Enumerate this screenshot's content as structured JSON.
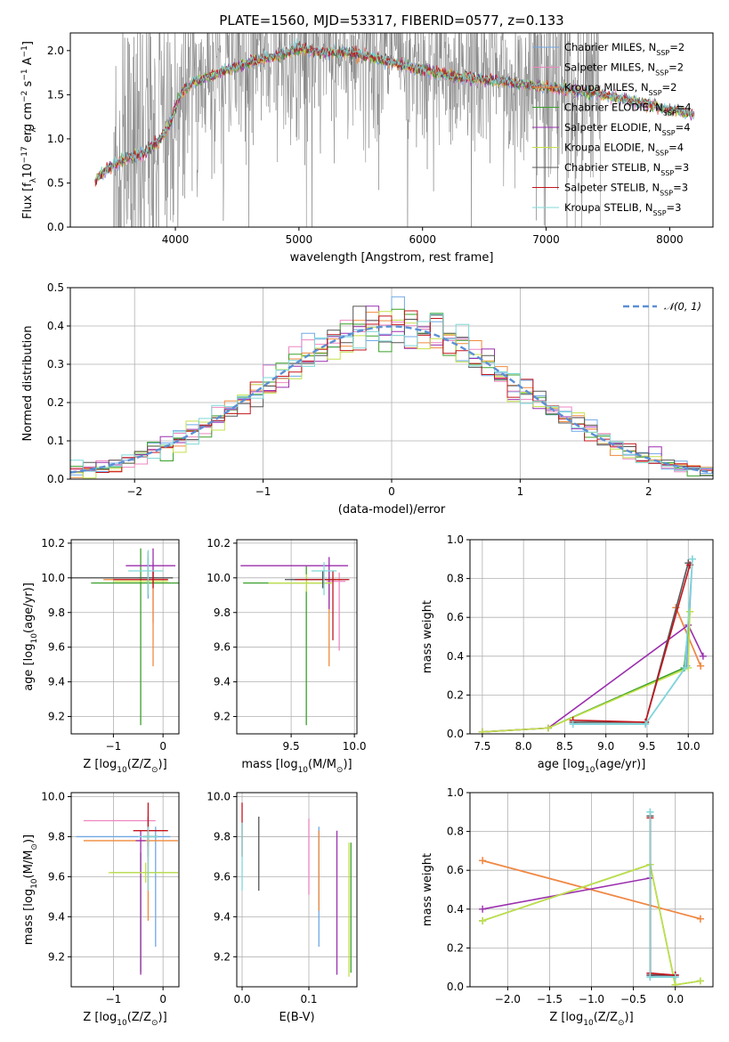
{
  "figure": {
    "title": "PLATE=1560, MJD=53317, FIBERID=0577, z=0.133"
  },
  "colors": {
    "data": "#808080",
    "models": [
      "#6fa8e6",
      "#ee86c0",
      "#f08a3c",
      "#3aa02a",
      "#9b2fae",
      "#c3e04a",
      "#555555",
      "#c4151c",
      "#7fd8d8"
    ],
    "normal": "#5b8fd6"
  },
  "legend_models": [
    {
      "base": "Chabrier MILES, N",
      "sub": "SSP",
      "tail": "=2"
    },
    {
      "base": "Salpeter MILES, N",
      "sub": "SSP",
      "tail": "=2"
    },
    {
      "base": "Kroupa MILES, N",
      "sub": "SSP",
      "tail": "=2"
    },
    {
      "base": "Chabrier ELODIE, N",
      "sub": "SSP",
      "tail": "=4"
    },
    {
      "base": "Salpeter ELODIE, N",
      "sub": "SSP",
      "tail": "=4"
    },
    {
      "base": "Kroupa ELODIE, N",
      "sub": "SSP",
      "tail": "=4"
    },
    {
      "base": "Chabrier STELIB, N",
      "sub": "SSP",
      "tail": "=3"
    },
    {
      "base": "Salpeter STELIB, N",
      "sub": "SSP",
      "tail": "=3"
    },
    {
      "base": "Kroupa STELIB, N",
      "sub": "SSP",
      "tail": "=3"
    }
  ],
  "chart_data": [
    {
      "id": "spectrum",
      "type": "line",
      "xlabel": "wavelength [Angstrom, rest frame]",
      "ylabel": {
        "pre": "Flux [f",
        "sub": "λ",
        "mid": "10",
        "sup1": "−17",
        "post1": " erg cm",
        "sup2": "−2",
        "post2": " s",
        "sup3": "−1",
        "post3": " A",
        "sup4": "−1",
        "post4": "]"
      },
      "xlim": [
        3150,
        8350
      ],
      "ylim": [
        0,
        2.2
      ],
      "xticks": [
        4000,
        5000,
        6000,
        7000,
        8000
      ],
      "yticks": [
        0.0,
        0.5,
        1.0,
        1.5,
        2.0
      ],
      "ytick_labels": [
        "0.0",
        "0.5",
        "1.0",
        "1.5",
        "2.0"
      ],
      "data_range": [
        3500,
        7440
      ],
      "model_range": [
        3350,
        8200
      ],
      "model_knots": [
        [
          3350,
          0.52
        ],
        [
          3450,
          0.66
        ],
        [
          3550,
          0.74
        ],
        [
          3650,
          0.8
        ],
        [
          3750,
          0.84
        ],
        [
          3850,
          0.95
        ],
        [
          3950,
          1.15
        ],
        [
          4050,
          1.52
        ],
        [
          4150,
          1.65
        ],
        [
          4300,
          1.72
        ],
        [
          4500,
          1.82
        ],
        [
          4700,
          1.9
        ],
        [
          4860,
          1.95
        ],
        [
          5000,
          2.02
        ],
        [
          5200,
          1.97
        ],
        [
          5400,
          1.98
        ],
        [
          5600,
          1.92
        ],
        [
          5800,
          1.85
        ],
        [
          6000,
          1.78
        ],
        [
          6200,
          1.72
        ],
        [
          6400,
          1.68
        ],
        [
          6600,
          1.66
        ],
        [
          6800,
          1.62
        ],
        [
          7000,
          1.58
        ],
        [
          7200,
          1.55
        ],
        [
          7400,
          1.52
        ],
        [
          7600,
          1.45
        ],
        [
          7800,
          1.4
        ],
        [
          8000,
          1.33
        ],
        [
          8200,
          1.28
        ]
      ]
    },
    {
      "id": "residuals",
      "type": "histogram",
      "xlabel": "(data-model)/error",
      "ylabel": "Normed distribution",
      "xlim": [
        -2.5,
        2.5
      ],
      "ylim": [
        0,
        0.5
      ],
      "xticks": [
        -2,
        -1,
        0,
        1,
        2
      ],
      "xtick_labels": [
        "−2",
        "−1",
        "0",
        "1",
        "2"
      ],
      "yticks": [
        0.0,
        0.1,
        0.2,
        0.3,
        0.4,
        0.5
      ],
      "ytick_labels": [
        "0.0",
        "0.1",
        "0.2",
        "0.3",
        "0.4",
        "0.5"
      ],
      "bin_width": 0.1,
      "legend": "𝒩(0, 1)"
    },
    {
      "id": "z-age",
      "type": "errorbar",
      "xlabel": {
        "text": "Z [log",
        "sub": "10",
        "tail": "(Z/Z",
        "odot": "⊙",
        "end": ")]"
      },
      "ylabel": {
        "text": "age  [log",
        "sub": "10",
        "tail": "(age/yr)]"
      },
      "xlim": [
        -1.85,
        0.32
      ],
      "ylim": [
        9.1,
        10.22
      ],
      "xticks": [
        -1,
        0
      ],
      "xtick_labels": [
        "−1",
        "0"
      ],
      "yticks": [
        9.2,
        9.4,
        9.6,
        9.8,
        10.0,
        10.2
      ],
      "ytick_labels": [
        "9.2",
        "9.4",
        "9.6",
        "9.8",
        "10.0",
        "10.2"
      ],
      "points": [
        {
          "x": -0.3,
          "xerr": [
            0.2,
            0.2
          ],
          "y": 10.0,
          "yerr": [
            0.12,
            0.12
          ]
        },
        {
          "x": -0.2,
          "xerr": [
            0.3,
            0.3
          ],
          "y": 9.99,
          "yerr": [
            0.25,
            0.1
          ]
        },
        {
          "x": -0.2,
          "xerr": [
            1.0,
            0.3
          ],
          "y": 9.99,
          "yerr": [
            0.5,
            0.05
          ]
        },
        {
          "x": -0.45,
          "xerr": [
            1.0,
            1.1
          ],
          "y": 9.97,
          "yerr": [
            0.82,
            0.2
          ]
        },
        {
          "x": -0.2,
          "xerr": [
            0.55,
            0.45
          ],
          "y": 10.07,
          "yerr": [
            0.1,
            0.1
          ]
        },
        {
          "x": -0.3,
          "xerr": [
            0.7,
            0.4
          ],
          "y": 9.98,
          "yerr": [
            0.05,
            0.05
          ]
        },
        {
          "x": -0.3,
          "xerr": [
            1.6,
            0.5
          ],
          "y": 10.0,
          "yerr": [
            0.1,
            0.15
          ]
        },
        {
          "x": -0.2,
          "xerr": [
            0.8,
            0.3
          ],
          "y": 9.99,
          "yerr": [
            0.05,
            0.05
          ]
        },
        {
          "x": -0.3,
          "xerr": [
            0.4,
            0.3
          ],
          "y": 10.04,
          "yerr": [
            0.14,
            0.12
          ]
        }
      ]
    },
    {
      "id": "mass-age",
      "type": "errorbar",
      "xlabel": {
        "text": "mass [log",
        "sub": "10",
        "tail": "(M/M",
        "odot": "⊙",
        "end": ")]"
      },
      "ylabel": null,
      "xlim": [
        9.07,
        10.02
      ],
      "ylim": [
        9.1,
        10.22
      ],
      "xticks": [
        9.5,
        10.0
      ],
      "xtick_labels": [
        "9.5",
        "10.0"
      ],
      "yticks": [
        9.2,
        9.4,
        9.6,
        9.8,
        10.0,
        10.2
      ],
      "ytick_labels": [
        "9.2",
        "9.4",
        "9.6",
        "9.8",
        "10.0",
        "10.2"
      ],
      "points": [
        {
          "x": 9.8,
          "xerr": [
            0.3,
            0.15
          ],
          "y": 9.99,
          "yerr": [
            0.1,
            0.05
          ]
        },
        {
          "x": 9.88,
          "xerr": [
            0.1,
            0.05
          ],
          "y": 9.98,
          "yerr": [
            0.4,
            0.05
          ]
        },
        {
          "x": 9.8,
          "xerr": [
            0.1,
            0.1
          ],
          "y": 9.99,
          "yerr": [
            0.5,
            0.05
          ]
        },
        {
          "x": 9.62,
          "xerr": [
            0.5,
            0.2
          ],
          "y": 9.97,
          "yerr": [
            0.82,
            0.1
          ]
        },
        {
          "x": 9.8,
          "xerr": [
            0.7,
            0.15
          ],
          "y": 10.07,
          "yerr": [
            0.25,
            0.05
          ]
        },
        {
          "x": 9.62,
          "xerr": [
            0.3,
            0.2
          ],
          "y": 9.97,
          "yerr": [
            0.05,
            0.05
          ]
        },
        {
          "x": 9.75,
          "xerr": [
            0.3,
            0.1
          ],
          "y": 9.99,
          "yerr": [
            0.05,
            0.05
          ]
        },
        {
          "x": 9.83,
          "xerr": [
            0.3,
            0.13
          ],
          "y": 9.99,
          "yerr": [
            0.35,
            0.05
          ]
        },
        {
          "x": 9.76,
          "xerr": [
            0.1,
            0.1
          ],
          "y": 10.04,
          "yerr": [
            0.14,
            0.05
          ]
        }
      ]
    },
    {
      "id": "age-weight",
      "type": "line",
      "xlabel": {
        "text": "age  [log",
        "sub": "10",
        "tail": "(age/yr)]"
      },
      "ylabel": "mass weight",
      "xlim": [
        7.35,
        10.3
      ],
      "ylim": [
        0,
        1.0
      ],
      "xticks": [
        7.5,
        8.0,
        8.5,
        9.0,
        9.5,
        10.0
      ],
      "xtick_labels": [
        "7.5",
        "8.0",
        "8.5",
        "9.0",
        "9.5",
        "10.0"
      ],
      "yticks": [
        0.0,
        0.2,
        0.4,
        0.6,
        0.8,
        1.0
      ],
      "ytick_labels": [
        "0.0",
        "0.2",
        "0.4",
        "0.6",
        "0.8",
        "1.0"
      ],
      "series": [
        {
          "x": [
            8.6,
            9.48,
            9.98,
            10.05
          ],
          "y": [
            0.05,
            0.05,
            0.35,
            0.9
          ]
        },
        {
          "x": [
            9.85,
            10.15
          ],
          "y": [
            0.65,
            0.35
          ]
        },
        {
          "x": [
            9.85,
            10.15
          ],
          "y": [
            0.65,
            0.35
          ]
        },
        {
          "x": [
            7.5,
            8.3,
            9.95,
            10.02
          ],
          "y": [
            0.01,
            0.03,
            0.34,
            0.63
          ]
        },
        {
          "x": [
            7.5,
            8.3,
            10.0,
            10.18
          ],
          "y": [
            0.01,
            0.03,
            0.56,
            0.4
          ]
        },
        {
          "x": [
            7.5,
            8.3,
            10.0,
            10.02
          ],
          "y": [
            0.01,
            0.03,
            0.34,
            0.63
          ]
        },
        {
          "x": [
            8.6,
            9.48,
            10.0
          ],
          "y": [
            0.06,
            0.06,
            0.88
          ]
        },
        {
          "x": [
            8.6,
            9.48,
            10.02
          ],
          "y": [
            0.07,
            0.06,
            0.87
          ]
        },
        {
          "x": [
            8.6,
            9.48,
            9.96,
            10.05
          ],
          "y": [
            0.05,
            0.05,
            0.34,
            0.9
          ]
        }
      ]
    },
    {
      "id": "z-mass",
      "type": "errorbar",
      "xlabel": {
        "text": "Z [log",
        "sub": "10",
        "tail": "(Z/Z",
        "odot": "⊙",
        "end": ")]"
      },
      "ylabel": {
        "text": "mass [log",
        "sub": "10",
        "tail": "(M/M",
        "odot": "⊙",
        "end": ")]"
      },
      "xlim": [
        -1.85,
        0.32
      ],
      "ylim": [
        9.05,
        10.02
      ],
      "xticks": [
        -1,
        0
      ],
      "xtick_labels": [
        "−1",
        "0"
      ],
      "yticks": [
        9.2,
        9.4,
        9.6,
        9.8,
        10.0
      ],
      "ytick_labels": [
        "9.2",
        "9.4",
        "9.6",
        "9.8",
        "10.0"
      ],
      "points": [
        {
          "x": -0.15,
          "xerr": [
            1.6,
            0.3
          ],
          "y": 9.8,
          "yerr": [
            0.55,
            0.05
          ]
        },
        {
          "x": -0.3,
          "xerr": [
            1.3,
            0.15
          ],
          "y": 9.88,
          "yerr": [
            0.35,
            0.05
          ]
        },
        {
          "x": -0.3,
          "xerr": [
            1.3,
            0.6
          ],
          "y": 9.78,
          "yerr": [
            0.4,
            0.05
          ]
        },
        {
          "x": -0.45,
          "xerr": [
            0.6,
            0.75
          ],
          "y": 9.62,
          "yerr": [
            0.5,
            0.1
          ]
        },
        {
          "x": -0.45,
          "xerr": [
            0.1,
            0.1
          ],
          "y": 9.78,
          "yerr": [
            0.67,
            0.05
          ]
        },
        {
          "x": -0.35,
          "xerr": [
            0.75,
            0.65
          ],
          "y": 9.62,
          "yerr": [
            0.05,
            0.05
          ]
        },
        {
          "x": -0.3,
          "xerr": [
            0.1,
            0.2
          ],
          "y": 9.8,
          "yerr": [
            0.1,
            0.1
          ]
        },
        {
          "x": -0.3,
          "xerr": [
            0.3,
            0.4
          ],
          "y": 9.83,
          "yerr": [
            0.08,
            0.14
          ]
        },
        {
          "x": -0.3,
          "xerr": [
            0.2,
            0.2
          ],
          "y": 9.8,
          "yerr": [
            0.27,
            0.05
          ]
        }
      ]
    },
    {
      "id": "ebv-mass",
      "type": "errorbar",
      "xlabel": "E(B-V)",
      "ylabel": null,
      "xlim": [
        -0.008,
        0.172
      ],
      "ylim": [
        9.05,
        10.02
      ],
      "xticks": [
        0.0,
        0.1
      ],
      "xtick_labels": [
        "0.0",
        "0.1"
      ],
      "yticks": [
        9.2,
        9.4,
        9.6,
        9.8,
        10.0
      ],
      "ytick_labels": [
        "9.2",
        "9.4",
        "9.6",
        "9.8",
        "10.0"
      ],
      "points": [
        {
          "x": 0.115,
          "y": 9.8,
          "yerr": [
            0.55,
            0.05
          ]
        },
        {
          "x": 0.1,
          "y": 9.88,
          "yerr": [
            0.37,
            0.01
          ]
        },
        {
          "x": 0.115,
          "y": 9.78,
          "yerr": [
            0.35,
            0.05
          ]
        },
        {
          "x": 0.163,
          "y": 9.62,
          "yerr": [
            0.5,
            0.15
          ]
        },
        {
          "x": 0.142,
          "y": 9.78,
          "yerr": [
            0.67,
            0.05
          ]
        },
        {
          "x": 0.16,
          "y": 9.62,
          "yerr": [
            0.52,
            0.15
          ]
        },
        {
          "x": 0.025,
          "y": 9.8,
          "yerr": [
            0.27,
            0.1
          ]
        },
        {
          "x": 0.0,
          "y": 9.85,
          "yerr": [
            0.15,
            0.12
          ]
        },
        {
          "x": 0.0,
          "y": 9.75,
          "yerr": [
            0.22,
            0.12
          ]
        }
      ]
    },
    {
      "id": "z-weight",
      "type": "line",
      "xlabel": {
        "text": "Z [log",
        "sub": "10",
        "tail": "(Z/Z",
        "odot": "⊙",
        "end": ")]"
      },
      "ylabel": "mass weight",
      "xlim": [
        -2.45,
        0.45
      ],
      "ylim": [
        0,
        1.0
      ],
      "xticks": [
        -2.0,
        -1.5,
        -1.0,
        -0.5,
        0.0
      ],
      "xtick_labels": [
        "−2.0",
        "−1.5",
        "−1.0",
        "−0.5",
        "0.0"
      ],
      "yticks": [
        0.0,
        0.2,
        0.4,
        0.6,
        0.8,
        1.0
      ],
      "ytick_labels": [
        "0.0",
        "0.2",
        "0.4",
        "0.6",
        "0.8",
        "1.0"
      ],
      "series": [
        {
          "x": [
            -0.3,
            -0.3,
            0.0
          ],
          "y": [
            0.9,
            0.05,
            0.05
          ]
        },
        {
          "x": [
            -2.3,
            0.3
          ],
          "y": [
            0.65,
            0.35
          ]
        },
        {
          "x": [
            -2.3,
            0.3
          ],
          "y": [
            0.65,
            0.35
          ]
        },
        {
          "x": [
            -2.3,
            -0.3,
            0.0,
            0.3
          ],
          "y": [
            0.34,
            0.63,
            0.01,
            0.03
          ]
        },
        {
          "x": [
            -2.3,
            -0.3,
            -0.3,
            0.0
          ],
          "y": [
            0.4,
            0.56,
            0.06,
            0.06
          ]
        },
        {
          "x": [
            -2.3,
            -0.3,
            0.0,
            0.3
          ],
          "y": [
            0.34,
            0.63,
            0.01,
            0.03
          ]
        },
        {
          "x": [
            -0.3,
            -0.3,
            0.0
          ],
          "y": [
            0.88,
            0.06,
            0.06
          ]
        },
        {
          "x": [
            -0.3,
            -0.3,
            0.0
          ],
          "y": [
            0.87,
            0.07,
            0.06
          ]
        },
        {
          "x": [
            -0.3,
            -0.3,
            0.0
          ],
          "y": [
            0.9,
            0.05,
            0.05
          ]
        }
      ]
    }
  ]
}
